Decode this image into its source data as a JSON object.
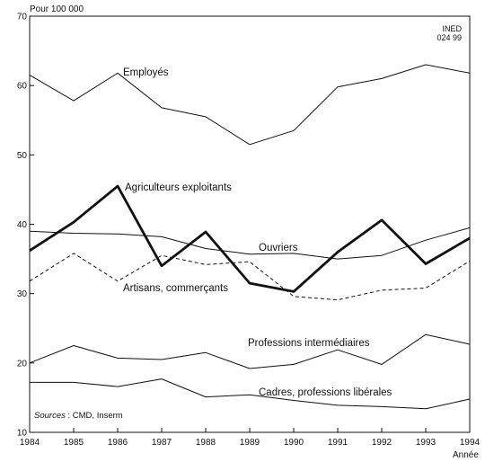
{
  "chart_data": {
    "type": "line",
    "ylabel": "Pour 100 000",
    "xlabel": "Année",
    "ylim": [
      10,
      70
    ],
    "yticks": [
      10,
      20,
      30,
      40,
      50,
      60,
      70
    ],
    "x": [
      1984,
      1985,
      1986,
      1987,
      1988,
      1989,
      1990,
      1991,
      1992,
      1993,
      1994
    ],
    "grid": false,
    "legend": "inline labels",
    "source_label": "Sources",
    "source_text": " : CMD, Inserm",
    "code_lines": [
      "INED",
      "024 99"
    ],
    "series": [
      {
        "name": "Employés",
        "style": "thin",
        "values": [
          61.5,
          57.8,
          61.8,
          56.8,
          55.5,
          51.5,
          53.5,
          59.8,
          61.0,
          63.0,
          61.8
        ]
      },
      {
        "name": "Agriculteurs exploitants",
        "style": "bold",
        "values": [
          36.2,
          40.3,
          45.5,
          34.0,
          38.9,
          31.5,
          30.3,
          36.0,
          40.6,
          34.3,
          38.0
        ]
      },
      {
        "name": "Ouvriers",
        "style": "thin",
        "values": [
          39.0,
          38.7,
          38.6,
          38.2,
          36.5,
          35.7,
          35.8,
          35.0,
          35.5,
          37.7,
          39.5
        ]
      },
      {
        "name": "Artisans, commerçants",
        "style": "dashed",
        "values": [
          31.8,
          35.8,
          31.8,
          35.5,
          34.2,
          34.6,
          29.6,
          29.1,
          30.5,
          30.8,
          34.7
        ]
      },
      {
        "name": "Professions intermédiaires",
        "style": "thin",
        "values": [
          20.0,
          22.5,
          20.7,
          20.5,
          21.5,
          19.2,
          19.8,
          21.9,
          19.8,
          24.1,
          22.7
        ]
      },
      {
        "name": "Cadres, professions libérales",
        "style": "thin",
        "values": [
          17.2,
          17.2,
          16.6,
          17.7,
          15.1,
          15.4,
          14.6,
          13.9,
          13.7,
          13.4,
          14.8
        ]
      }
    ]
  }
}
